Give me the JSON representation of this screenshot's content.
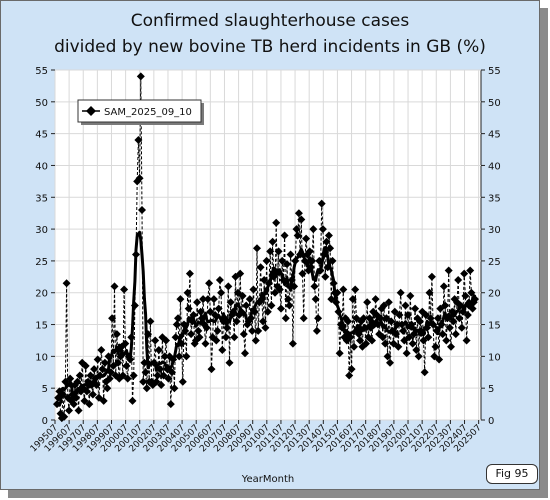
{
  "chart_data": {
    "type": "line",
    "title_line1": "Confirmed slaughterhouse cases",
    "title_line2": "divided by new bovine TB herd incidents in GB (%)",
    "xlabel": "YearMonth",
    "ylabel": "",
    "ylim": [
      0,
      55
    ],
    "yticks": [
      "0",
      "5",
      "10",
      "15",
      "20",
      "25",
      "30",
      "35",
      "40",
      "45",
      "50",
      "55"
    ],
    "xticks": [
      "199507",
      "199607",
      "199707",
      "199807",
      "199907",
      "200007",
      "200107",
      "200207",
      "200307",
      "200407",
      "200507",
      "200607",
      "200707",
      "200807",
      "200907",
      "201007",
      "201107",
      "201207",
      "201307",
      "201407",
      "201507",
      "201607",
      "201707",
      "201807",
      "201907",
      "202007",
      "202107",
      "202207",
      "202307",
      "202407",
      "202507"
    ],
    "x_start": "199507",
    "grid": true,
    "legend_position": "top-left",
    "series": [
      {
        "name": "SAM_2025_09_10",
        "color": "#000000",
        "values": [
          2.5,
          3.5,
          4.5,
          1.0,
          0.3,
          4.0,
          0.5,
          6.0,
          21.5,
          3.5,
          1.5,
          6.5,
          3.0,
          4.0,
          2.5,
          5.5,
          3.5,
          6.0,
          1.5,
          7.0,
          4.5,
          9.0,
          5.0,
          3.0,
          8.5,
          4.5,
          6.0,
          2.5,
          7.0,
          5.5,
          4.0,
          8.0,
          6.5,
          5.5,
          9.5,
          3.5,
          7.0,
          11.0,
          8.0,
          3.0,
          9.0,
          6.0,
          5.0,
          10.0,
          6.5,
          7.5,
          16.0,
          8.5,
          21.0,
          7.0,
          13.5,
          9.0,
          6.5,
          10.0,
          11.5,
          7.0,
          20.5,
          12.0,
          8.5,
          6.5,
          10.0,
          9.5,
          13.0,
          3.0,
          7.0,
          18.0,
          26.0,
          37.5,
          44.0,
          38.0,
          54.0,
          33.0,
          6.0,
          9.0,
          7.5,
          5.0,
          13.5,
          6.0,
          15.5,
          6.0,
          5.5,
          9.0,
          12.5,
          6.0,
          7.0,
          11.0,
          8.0,
          5.5,
          13.0,
          7.0,
          10.0,
          12.5,
          8.0,
          6.5,
          10.0,
          2.5,
          7.5,
          9.5,
          5.0,
          13.0,
          15.0,
          16.0,
          10.0,
          19.0,
          12.0,
          6.0,
          15.0,
          14.0,
          10.0,
          20.0,
          17.5,
          23.0,
          13.5,
          15.5,
          16.5,
          12.0,
          12.5,
          18.5,
          14.0,
          13.0,
          17.0,
          16.0,
          19.0,
          15.0,
          12.0,
          14.5,
          19.0,
          21.5,
          17.0,
          8.0,
          13.0,
          19.0,
          16.5,
          12.5,
          14.0,
          17.5,
          22.0,
          20.0,
          11.0,
          15.5,
          16.0,
          13.0,
          14.5,
          21.0,
          9.0,
          18.5,
          16.5,
          17.0,
          13.0,
          22.5,
          15.5,
          20.0,
          16.5,
          23.0,
          17.0,
          19.5,
          13.5,
          10.5,
          18.0,
          15.0,
          15.5,
          19.0,
          16.0,
          14.0,
          20.5,
          17.0,
          12.5,
          27.0,
          14.0,
          18.5,
          24.0,
          19.0,
          15.5,
          22.0,
          14.5,
          25.0,
          17.0,
          21.5,
          26.5,
          18.0,
          28.0,
          22.5,
          20.0,
          31.0,
          21.0,
          26.5,
          20.5,
          17.5,
          25.0,
          22.0,
          29.0,
          16.0,
          24.5,
          19.0,
          18.0,
          26.0,
          22.0,
          12.0,
          21.0,
          25.0,
          30.0,
          29.0,
          32.5,
          26.0,
          31.5,
          23.0,
          16.0,
          25.0,
          28.5,
          26.0,
          23.5,
          26.5,
          24.0,
          25.0,
          30.0,
          21.0,
          19.0,
          14.0,
          16.0,
          25.0,
          23.5,
          34.0,
          30.0,
          26.0,
          22.5,
          28.0,
          24.0,
          29.0,
          27.0,
          19.0,
          25.0,
          21.5,
          20.0,
          18.5,
          20.0,
          17.0,
          10.5,
          15.0,
          14.5,
          20.5,
          13.0,
          16.0,
          12.5,
          15.5,
          7.0,
          13.0,
          8.0,
          19.0,
          11.5,
          20.5,
          16.0,
          14.0,
          13.5,
          12.5,
          15.5,
          11.5,
          16.0,
          14.5,
          12.0,
          18.5,
          13.0,
          16.0,
          14.5,
          12.5,
          17.0,
          15.0,
          19.0,
          16.5,
          15.0,
          13.5,
          16.0,
          17.5,
          13.0,
          18.0,
          12.0,
          16.0,
          10.0,
          18.5,
          9.0,
          15.5,
          14.0,
          12.0,
          17.0,
          13.5,
          15.0,
          11.5,
          16.5,
          20.0,
          15.0,
          14.0,
          12.5,
          18.0,
          10.5,
          16.5,
          13.0,
          19.5,
          15.0,
          12.0,
          13.5,
          17.5,
          11.0,
          16.0,
          10.0,
          15.5,
          14.0,
          17.0,
          12.5,
          7.5,
          16.5,
          14.5,
          13.0,
          20.0,
          16.0,
          22.5,
          15.0,
          10.0,
          11.5,
          14.0,
          16.0,
          9.5,
          17.5,
          15.0,
          13.5,
          21.0,
          18.0,
          12.5,
          16.0,
          23.5,
          14.5,
          11.5,
          17.0,
          15.5,
          19.0,
          13.5,
          18.5,
          22.0,
          16.0,
          18.0,
          14.5,
          17.0,
          23.0,
          19.5,
          12.5,
          16.5,
          18.0,
          23.5,
          20.0,
          17.5,
          18.5,
          19.0
        ]
      }
    ]
  },
  "badge": "Fig 95"
}
